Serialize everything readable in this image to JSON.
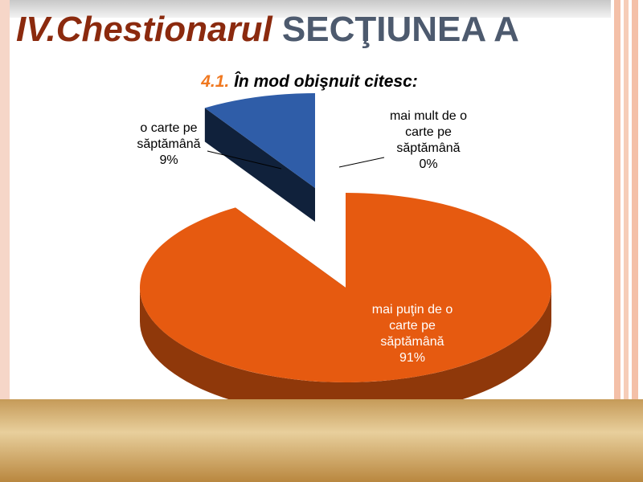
{
  "slide": {
    "title_part1": "IV.Chestionarul",
    "title_part2": "SECŢIUNEA A"
  },
  "chart_title": {
    "number": "4.1.",
    "text": "În mod obişnuit citesc:"
  },
  "chart_data": {
    "type": "pie",
    "title": "4.1. În mod obişnuit citesc:",
    "slices": [
      {
        "label": "mai puţin de o carte pe săptămână",
        "value": 91,
        "display": "91%",
        "color": "#e65a10"
      },
      {
        "label": "o carte pe săptămână",
        "value": 9,
        "display": "9%",
        "color": "#2f5da8"
      },
      {
        "label": "mai mult de o carte pe săptămână",
        "value": 0,
        "display": "0%",
        "color": "#6d8f3a"
      }
    ]
  },
  "labels": {
    "slice0": {
      "l1": "mai puţin de o",
      "l2": "carte pe",
      "l3": "săptămână",
      "pct": "91%"
    },
    "slice1": {
      "l1": "o carte pe",
      "l2": "săptămână",
      "pct": "9%"
    },
    "slice2": {
      "l1": "mai mult de o",
      "l2": "carte pe",
      "l3": "săptămână",
      "pct": "0%"
    }
  },
  "colors": {
    "title_dark_red": "#8b2a0e",
    "title_gray_blue": "#4d5a6e",
    "accent_orange": "#f07820"
  }
}
